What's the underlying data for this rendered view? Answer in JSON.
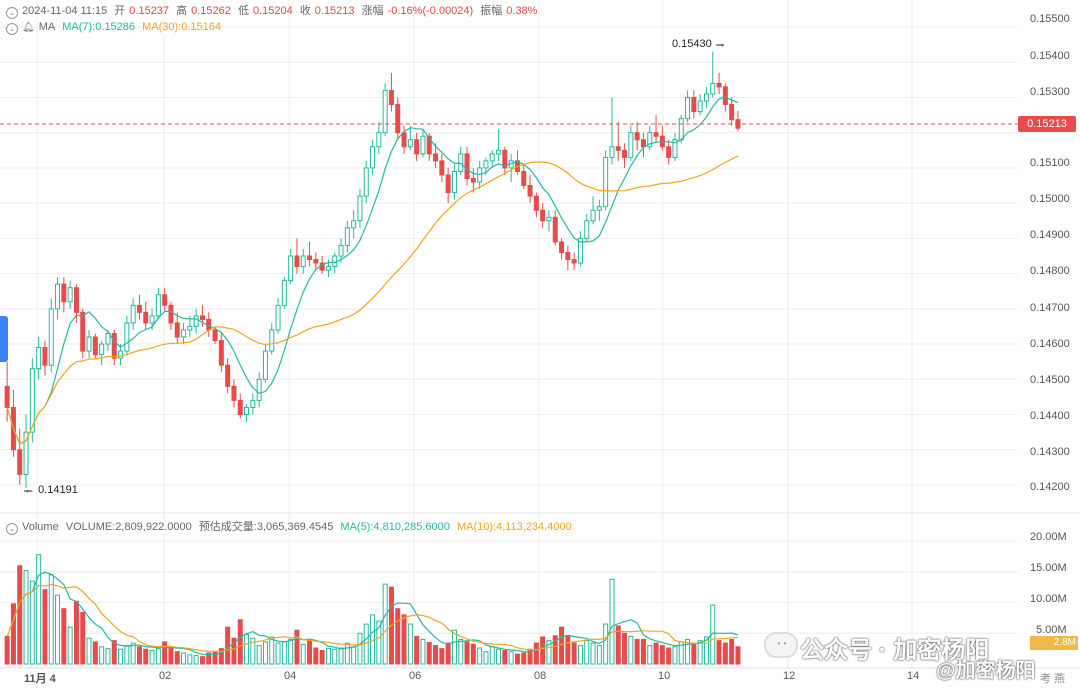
{
  "header": {
    "datetime": "2024-11-04 11:15",
    "open_label": "开",
    "open": "0.15237",
    "high_label": "高",
    "high": "0.15262",
    "low_label": "低",
    "low": "0.15204",
    "close_label": "收",
    "close": "0.15213",
    "change_label": "涨幅",
    "change": "-0.16%(-0.00024)",
    "amplitude_label": "振幅",
    "amplitude": "0.38%"
  },
  "ma_legend": {
    "name": "MA",
    "ma7": "MA(7):0.15286",
    "ma30": "MA(30):0.15164"
  },
  "volume_legend": {
    "name": "Volume",
    "volume": "VOLUME:2,809,922.0000",
    "estimated": "预估成交量:3,065,369.4545",
    "ma5": "MA(5):4,810,285.6000",
    "ma10": "MA(10):4,113,234.4000"
  },
  "price_axis_labels": [
    "0.15500",
    "0.15400",
    "0.15300",
    "0.15213",
    "0.15100",
    "0.15000",
    "0.14900",
    "0.14800",
    "0.14700",
    "0.14600",
    "0.14500",
    "0.14400",
    "0.14300",
    "0.14200"
  ],
  "volume_axis_labels": [
    "20.00M",
    "15.00M",
    "10.00M",
    "5.00M"
  ],
  "current_price_tag": "0.15213",
  "volume_tag_partial": "2.8M",
  "annotations": {
    "high": "0.15430",
    "low": "0.14191"
  },
  "x_axis_labels": [
    "11月 4",
    "02",
    "04",
    "06",
    "08",
    "10",
    "12",
    "14"
  ],
  "watermark": {
    "line1": "公众号 · 加密杨阳",
    "line2": "@加密杨阳",
    "corner": "考 燕"
  },
  "colors": {
    "up": "#26b8a0",
    "down": "#e84b4b",
    "ma7": "#26b8a0",
    "ma30": "#f2a520",
    "grid": "#eeeeee"
  },
  "chart_data": {
    "type": "candlestick",
    "price_range": [
      0.1418,
      0.1552
    ],
    "volume_range": [
      0,
      21000000
    ],
    "current_price": 0.15213,
    "x_ticks": [
      "11月 4",
      "02",
      "04",
      "06",
      "08",
      "10",
      "12",
      "14"
    ],
    "candles": [
      [
        0.1448,
        0.1455,
        0.1438,
        0.1442,
        4.5
      ],
      [
        0.1442,
        0.1447,
        0.1428,
        0.143,
        9.8
      ],
      [
        0.143,
        0.1436,
        0.142,
        0.1423,
        16.0
      ],
      [
        0.1423,
        0.144,
        0.14191,
        0.1435,
        15.2
      ],
      [
        0.1435,
        0.1456,
        0.1432,
        0.1453,
        13.5
      ],
      [
        0.1453,
        0.1462,
        0.145,
        0.1459,
        17.8
      ],
      [
        0.1459,
        0.1461,
        0.1451,
        0.1454,
        12.1
      ],
      [
        0.1454,
        0.1473,
        0.1452,
        0.147,
        14.5
      ],
      [
        0.147,
        0.1479,
        0.1467,
        0.1477,
        11.2
      ],
      [
        0.1477,
        0.1479,
        0.1469,
        0.1472,
        9.0
      ],
      [
        0.1472,
        0.1478,
        0.147,
        0.1476,
        6.0
      ],
      [
        0.1476,
        0.1477,
        0.1466,
        0.1469,
        10.2
      ],
      [
        0.1469,
        0.147,
        0.1456,
        0.1458,
        8.4
      ],
      [
        0.1458,
        0.1464,
        0.1456,
        0.1462,
        4.2
      ],
      [
        0.1462,
        0.1463,
        0.1456,
        0.1457,
        3.6
      ],
      [
        0.1457,
        0.1461,
        0.1454,
        0.146,
        2.8
      ],
      [
        0.146,
        0.1464,
        0.1458,
        0.1463,
        2.5
      ],
      [
        0.1463,
        0.1464,
        0.1454,
        0.1456,
        3.8
      ],
      [
        0.1456,
        0.146,
        0.1454,
        0.1458,
        2.4
      ],
      [
        0.1458,
        0.1468,
        0.1457,
        0.1466,
        3.0
      ],
      [
        0.1466,
        0.1473,
        0.1464,
        0.1471,
        3.4
      ],
      [
        0.1471,
        0.1474,
        0.1467,
        0.1469,
        2.8
      ],
      [
        0.1469,
        0.1472,
        0.1464,
        0.1466,
        2.4
      ],
      [
        0.1466,
        0.147,
        0.1464,
        0.1468,
        2.2
      ],
      [
        0.1468,
        0.1476,
        0.1467,
        0.1474,
        2.5
      ],
      [
        0.1474,
        0.1476,
        0.1469,
        0.1471,
        3.6
      ],
      [
        0.1471,
        0.1472,
        0.1464,
        0.1466,
        2.7
      ],
      [
        0.1466,
        0.1469,
        0.146,
        0.1462,
        2.0
      ],
      [
        0.1462,
        0.1466,
        0.146,
        0.1464,
        1.8
      ],
      [
        0.1464,
        0.1468,
        0.1462,
        0.1465,
        1.5
      ],
      [
        0.1465,
        0.147,
        0.1463,
        0.1468,
        1.4
      ],
      [
        0.1468,
        0.1471,
        0.1465,
        0.1467,
        1.2
      ],
      [
        0.1467,
        0.1469,
        0.1462,
        0.1464,
        1.8
      ],
      [
        0.1464,
        0.1465,
        0.146,
        0.1461,
        2.0
      ],
      [
        0.1461,
        0.1463,
        0.1452,
        0.1454,
        2.5
      ],
      [
        0.1454,
        0.1456,
        0.1446,
        0.1448,
        6.0
      ],
      [
        0.1448,
        0.145,
        0.1442,
        0.1444,
        4.2
      ],
      [
        0.1444,
        0.1446,
        0.1439,
        0.144,
        7.2
      ],
      [
        0.144,
        0.1443,
        0.1438,
        0.1442,
        4.8
      ],
      [
        0.1442,
        0.1446,
        0.144,
        0.1444,
        4.2
      ],
      [
        0.1444,
        0.1452,
        0.1442,
        0.145,
        3.0
      ],
      [
        0.145,
        0.146,
        0.1449,
        0.1458,
        3.6
      ],
      [
        0.1458,
        0.1466,
        0.1457,
        0.1464,
        4.4
      ],
      [
        0.1464,
        0.1473,
        0.1463,
        0.1471,
        3.4
      ],
      [
        0.1471,
        0.1479,
        0.147,
        0.1478,
        3.6
      ],
      [
        0.1478,
        0.1487,
        0.1477,
        0.1485,
        4.0
      ],
      [
        0.1485,
        0.149,
        0.148,
        0.1482,
        5.5
      ],
      [
        0.1482,
        0.1487,
        0.148,
        0.1485,
        3.2
      ],
      [
        0.1485,
        0.1489,
        0.1482,
        0.1484,
        4.0
      ],
      [
        0.1484,
        0.1486,
        0.1481,
        0.1483,
        2.6
      ],
      [
        0.1483,
        0.1485,
        0.148,
        0.1481,
        2.2
      ],
      [
        0.1481,
        0.1484,
        0.1479,
        0.1482,
        2.5
      ],
      [
        0.1482,
        0.1486,
        0.148,
        0.1485,
        2.4
      ],
      [
        0.1485,
        0.149,
        0.1483,
        0.1488,
        2.6
      ],
      [
        0.1488,
        0.1495,
        0.1486,
        0.1493,
        3.4
      ],
      [
        0.1493,
        0.1498,
        0.149,
        0.1495,
        2.8
      ],
      [
        0.1495,
        0.1504,
        0.1493,
        0.1502,
        5.0
      ],
      [
        0.1502,
        0.1512,
        0.15,
        0.151,
        6.5
      ],
      [
        0.151,
        0.1518,
        0.1508,
        0.1516,
        8.0
      ],
      [
        0.1516,
        0.1523,
        0.1514,
        0.152,
        7.0
      ],
      [
        0.152,
        0.1534,
        0.1519,
        0.1532,
        13.0
      ],
      [
        0.1532,
        0.1537,
        0.1526,
        0.1528,
        12.5
      ],
      [
        0.1528,
        0.153,
        0.1518,
        0.152,
        9.0
      ],
      [
        0.152,
        0.1522,
        0.1514,
        0.1516,
        8.0
      ],
      [
        0.1516,
        0.1522,
        0.1515,
        0.1518,
        6.5
      ],
      [
        0.1518,
        0.152,
        0.1512,
        0.1514,
        4.5
      ],
      [
        0.1514,
        0.1521,
        0.1513,
        0.1519,
        4.0
      ],
      [
        0.1519,
        0.152,
        0.1512,
        0.1514,
        3.5
      ],
      [
        0.1514,
        0.1517,
        0.151,
        0.1512,
        3.0
      ],
      [
        0.1512,
        0.1514,
        0.1506,
        0.1508,
        2.5
      ],
      [
        0.1508,
        0.151,
        0.15,
        0.1503,
        3.4
      ],
      [
        0.1503,
        0.1511,
        0.1501,
        0.1509,
        5.5
      ],
      [
        0.1509,
        0.1516,
        0.1508,
        0.1514,
        4.0
      ],
      [
        0.1514,
        0.1516,
        0.1505,
        0.1507,
        3.6
      ],
      [
        0.1507,
        0.151,
        0.1503,
        0.1506,
        3.2
      ],
      [
        0.1506,
        0.1512,
        0.1504,
        0.151,
        2.6
      ],
      [
        0.151,
        0.1513,
        0.1508,
        0.1512,
        2.0
      ],
      [
        0.1512,
        0.1515,
        0.151,
        0.1514,
        2.8
      ],
      [
        0.1514,
        0.1521,
        0.1512,
        0.1515,
        2.4
      ],
      [
        0.1515,
        0.1516,
        0.1508,
        0.151,
        2.2
      ],
      [
        0.151,
        0.1514,
        0.1506,
        0.1512,
        2.0
      ],
      [
        0.1512,
        0.1515,
        0.1508,
        0.1509,
        1.6
      ],
      [
        0.1509,
        0.1511,
        0.1504,
        0.1505,
        1.8
      ],
      [
        0.1505,
        0.1508,
        0.15,
        0.1502,
        2.4
      ],
      [
        0.1502,
        0.1503,
        0.1496,
        0.1498,
        3.4
      ],
      [
        0.1498,
        0.15,
        0.1493,
        0.1495,
        4.4
      ],
      [
        0.1495,
        0.1498,
        0.1492,
        0.1496,
        3.8
      ],
      [
        0.1496,
        0.1498,
        0.1488,
        0.1489,
        4.6
      ],
      [
        0.1489,
        0.149,
        0.1484,
        0.1486,
        6.0
      ],
      [
        0.1486,
        0.1488,
        0.1481,
        0.1484,
        4.6
      ],
      [
        0.1484,
        0.1486,
        0.1481,
        0.1483,
        3.4
      ],
      [
        0.1483,
        0.1492,
        0.1482,
        0.149,
        3.0
      ],
      [
        0.149,
        0.1497,
        0.1489,
        0.1495,
        3.8
      ],
      [
        0.1495,
        0.1502,
        0.1494,
        0.1498,
        3.4
      ],
      [
        0.1498,
        0.1501,
        0.1495,
        0.1499,
        3.0
      ],
      [
        0.1499,
        0.1515,
        0.1498,
        0.1513,
        6.5
      ],
      [
        0.1513,
        0.153,
        0.1511,
        0.1516,
        13.8
      ],
      [
        0.1516,
        0.1523,
        0.1512,
        0.1515,
        6.2
      ],
      [
        0.1515,
        0.1517,
        0.151,
        0.1513,
        5.0
      ],
      [
        0.1513,
        0.1522,
        0.1512,
        0.152,
        4.5
      ],
      [
        0.152,
        0.1523,
        0.1515,
        0.1518,
        4.0
      ],
      [
        0.1518,
        0.152,
        0.1513,
        0.1516,
        4.0
      ],
      [
        0.1516,
        0.1522,
        0.1515,
        0.152,
        3.0
      ],
      [
        0.152,
        0.1525,
        0.1517,
        0.1519,
        3.4
      ],
      [
        0.1519,
        0.1522,
        0.1515,
        0.1516,
        3.0
      ],
      [
        0.1516,
        0.1518,
        0.1511,
        0.1513,
        2.6
      ],
      [
        0.1513,
        0.152,
        0.1512,
        0.1518,
        2.8
      ],
      [
        0.1518,
        0.1525,
        0.1517,
        0.1524,
        3.6
      ],
      [
        0.1524,
        0.1532,
        0.1523,
        0.153,
        4.0
      ],
      [
        0.153,
        0.1532,
        0.1524,
        0.1526,
        3.4
      ],
      [
        0.1526,
        0.1531,
        0.1525,
        0.1529,
        3.8
      ],
      [
        0.1529,
        0.1533,
        0.1527,
        0.1531,
        4.4
      ],
      [
        0.1531,
        0.1543,
        0.153,
        0.1534,
        9.6
      ],
      [
        0.1534,
        0.1537,
        0.1531,
        0.1533,
        3.8
      ],
      [
        0.1533,
        0.1534,
        0.1526,
        0.1528,
        3.4
      ],
      [
        0.1528,
        0.153,
        0.1522,
        0.15237,
        4.0
      ],
      [
        0.15237,
        0.15262,
        0.15204,
        0.15213,
        2.8
      ]
    ]
  }
}
